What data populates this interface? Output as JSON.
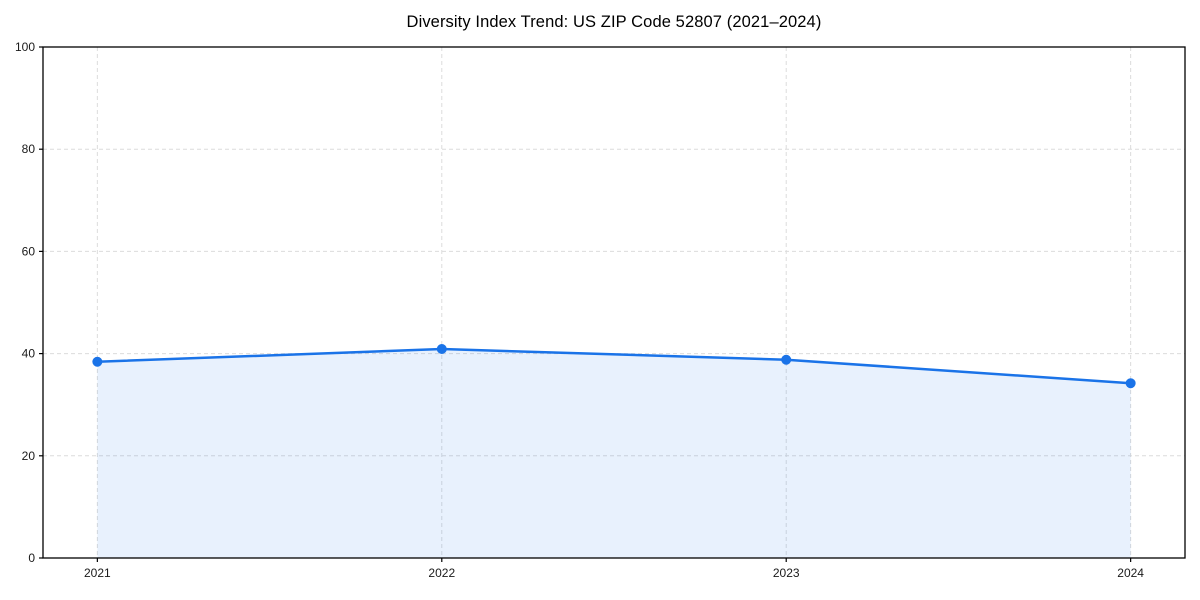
{
  "title": "Diversity Index Trend: US ZIP Code 52807 (2021–2024)",
  "chart_data": {
    "type": "area",
    "title": "Diversity Index Trend: US ZIP Code 52807 (2021–2024)",
    "categories": [
      "2021",
      "2022",
      "2023",
      "2024"
    ],
    "series": [
      {
        "name": "Diversity Index",
        "values": [
          38.4,
          40.9,
          38.8,
          34.2
        ]
      }
    ],
    "xlabel": "",
    "ylabel": "",
    "ylim": [
      0,
      100
    ],
    "yticks": [
      0,
      20,
      40,
      60,
      80,
      100
    ],
    "grid": "dashed, both axes",
    "legend_position": "none",
    "x_margin_frac": 0.0476,
    "colors": {
      "line": "#1a73e8",
      "marker": "#1a73e8",
      "fill": "rgba(26,115,232,0.10)",
      "grid": "#dcdcdc",
      "spine": "#000000",
      "tick_text": "#1a1a1a",
      "background": "#ffffff"
    }
  }
}
